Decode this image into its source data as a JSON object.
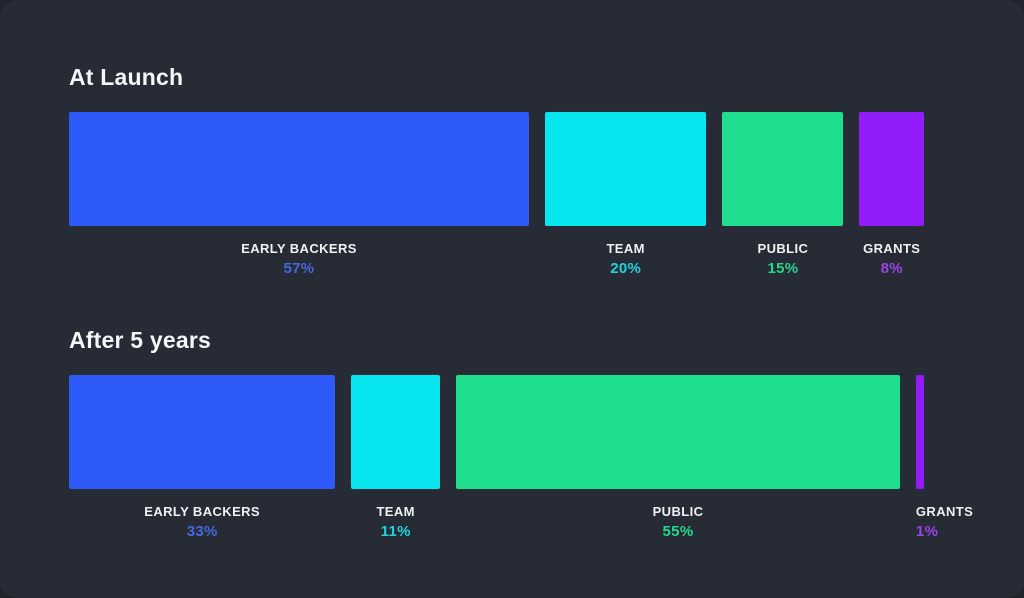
{
  "page": {
    "background": "#272B36",
    "outer_background": "#20242D",
    "heading_color": "#F5F6F8",
    "category_label_color": "#EFF1F4"
  },
  "chart_data": [
    {
      "type": "bar",
      "title": "At Launch",
      "orientation": "horizontal-proportional",
      "unit": "%",
      "categories": [
        "EARLY BACKERS",
        "TEAM",
        "PUBLIC",
        "GRANTS"
      ],
      "values": [
        57,
        20,
        15,
        8
      ],
      "colors": [
        "#2B5AF8",
        "#07E6EF",
        "#1FDE8D",
        "#921CFA"
      ],
      "value_label_colors": [
        "#4569DD",
        "#1FD3DC",
        "#24D78C",
        "#9C42E6"
      ],
      "legend_position": "none",
      "grid": false
    },
    {
      "type": "bar",
      "title": "After 5 years",
      "orientation": "horizontal-proportional",
      "unit": "%",
      "categories": [
        "EARLY BACKERS",
        "TEAM",
        "PUBLIC",
        "GRANTS"
      ],
      "values": [
        33,
        11,
        55,
        1
      ],
      "colors": [
        "#2B5AF8",
        "#07E6EF",
        "#1FDE8D",
        "#921CFA"
      ],
      "value_label_colors": [
        "#4569DD",
        "#1FD3DC",
        "#24D78C",
        "#9C42E6"
      ],
      "legend_position": "none",
      "grid": false
    }
  ]
}
